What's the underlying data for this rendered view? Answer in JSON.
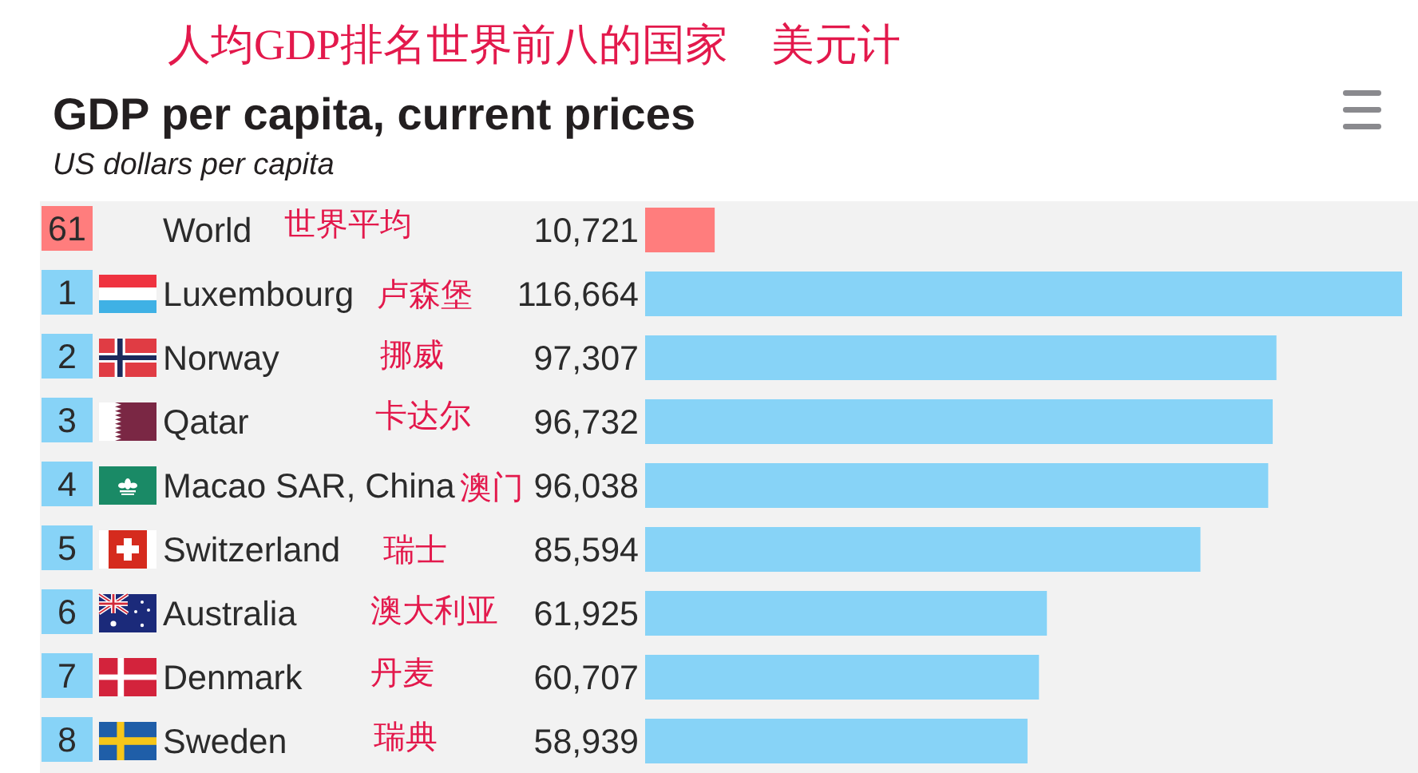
{
  "chart_data": {
    "type": "bar",
    "orientation": "horizontal",
    "title": "GDP per capita, current prices",
    "subtitle": "US dollars per capita",
    "categories": [
      "World",
      "Luxembourg",
      "Norway",
      "Qatar",
      "Macao SAR, China",
      "Switzerland",
      "Australia",
      "Denmark",
      "Sweden"
    ],
    "values": [
      10721,
      116664,
      97307,
      96732,
      96038,
      85594,
      61925,
      60707,
      58939
    ],
    "value_labels": [
      "10,721",
      "116,664",
      "97,307",
      "96,732",
      "96,038",
      "85,594",
      "61,925",
      "60,707",
      "58,939"
    ],
    "colors": [
      "#ff7d7d",
      "#87d3f7",
      "#87d3f7",
      "#87d3f7",
      "#87d3f7",
      "#87d3f7",
      "#87d3f7",
      "#87d3f7",
      "#87d3f7"
    ],
    "annotations": [
      "人均GDP排名世界前八的国家　美元计",
      "61",
      "世界平均",
      "1",
      "卢森堡",
      "2",
      "挪威",
      "3",
      "卡达尔",
      "4",
      "澳门",
      "5",
      "瑞士",
      "6",
      "澳大利亚",
      "7",
      "丹麦",
      "8",
      "瑞典"
    ]
  }
}
